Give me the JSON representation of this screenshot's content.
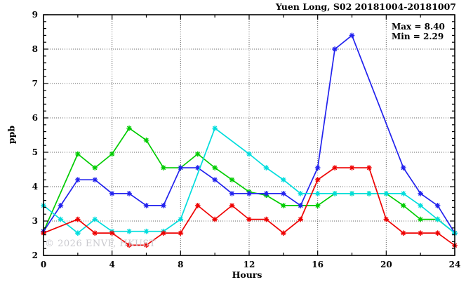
{
  "title": "Yuen Long, S02 20181004-20181007",
  "annotation": {
    "max_label": "Max = 8.40",
    "min_label": "Min = 2.29"
  },
  "watermark": "© 2026 ENVF, HKUST",
  "axes": {
    "x_title": "Hours",
    "y_title": "ppb"
  },
  "chart_data": {
    "type": "line",
    "title": "Yuen Long, S02 20181004-20181007",
    "xlabel": "Hours",
    "ylabel": "ppb",
    "xlim": [
      0,
      24
    ],
    "ylim": [
      2,
      9
    ],
    "x_major_ticks": [
      0,
      4,
      8,
      12,
      16,
      20,
      24
    ],
    "x_minor_ticks": [
      2,
      6,
      10,
      14,
      18,
      22
    ],
    "y_major_ticks": [
      2,
      3,
      4,
      5,
      6,
      7,
      8,
      9
    ],
    "y_minor_step": 0.2,
    "x_grid_lines": [
      4,
      8,
      12,
      16,
      20
    ],
    "y_grid_lines": [
      3,
      4,
      5,
      6,
      7,
      8
    ],
    "grid_style": "dotted",
    "legend": "none",
    "marker": "asterisk",
    "x": [
      0,
      1,
      2,
      3,
      4,
      5,
      6,
      7,
      8,
      9,
      10,
      11,
      12,
      13,
      14,
      15,
      16,
      17,
      18,
      19,
      20,
      21,
      22,
      23,
      24
    ],
    "series": [
      {
        "name": "green-series",
        "color": "#00cc00",
        "values": [
          2.7,
          null,
          4.95,
          4.55,
          4.95,
          5.7,
          5.35,
          4.55,
          4.55,
          4.95,
          4.55,
          4.2,
          3.85,
          3.75,
          3.45,
          3.45,
          3.45,
          3.8,
          3.8,
          3.8,
          3.8,
          3.45,
          3.05,
          3.05,
          2.65
        ]
      },
      {
        "name": "blue-series",
        "color": "#2222ee",
        "values": [
          2.7,
          3.45,
          4.2,
          4.2,
          3.8,
          3.8,
          3.45,
          3.45,
          4.55,
          4.55,
          4.2,
          3.8,
          3.8,
          3.8,
          3.8,
          3.45,
          4.55,
          8.0,
          8.4,
          null,
          null,
          4.55,
          3.8,
          3.45,
          2.65
        ]
      },
      {
        "name": "cyan-series",
        "color": "#00dddd",
        "values": [
          3.45,
          3.05,
          2.65,
          3.05,
          2.7,
          2.7,
          2.7,
          2.7,
          3.05,
          null,
          5.7,
          null,
          4.95,
          4.55,
          4.2,
          3.8,
          3.8,
          3.8,
          3.8,
          3.8,
          3.8,
          3.8,
          3.45,
          3.05,
          2.65
        ]
      },
      {
        "name": "red-series",
        "color": "#ee0000",
        "values": [
          2.65,
          null,
          3.05,
          2.65,
          2.65,
          2.3,
          2.3,
          2.65,
          2.65,
          3.45,
          3.05,
          3.45,
          3.05,
          3.05,
          2.65,
          3.05,
          4.2,
          4.55,
          4.55,
          4.55,
          3.05,
          2.65,
          2.65,
          2.65,
          2.29
        ]
      }
    ],
    "stats": {
      "max": 8.4,
      "min": 2.29
    }
  }
}
